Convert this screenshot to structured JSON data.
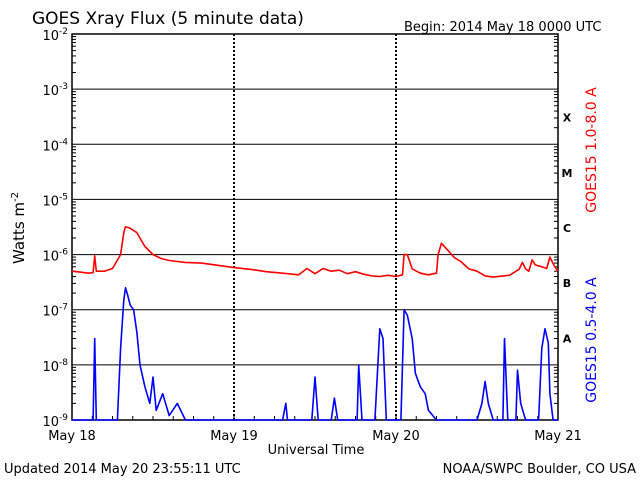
{
  "header": {
    "title": "GOES Xray Flux (5 minute data)",
    "begin": "Begin:  2014 May 18 0000 UTC"
  },
  "footer": {
    "updated": "Updated 2014 May 20 23:55:11 UTC",
    "credit": "NOAA/SWPC Boulder, CO USA"
  },
  "chart_data": {
    "type": "line",
    "title": "GOES Xray Flux (5 minute data)",
    "xlabel": "Universal Time",
    "ylabel": "Watts m",
    "ylabel_superscript": "-2",
    "yscale": "log",
    "ylim": [
      1e-09,
      0.01
    ],
    "xlim_days": [
      0,
      3
    ],
    "x_tick_labels": [
      "May 18",
      "May 19",
      "May 20",
      "May 21"
    ],
    "y_ticks": [
      {
        "base": "10",
        "exp": "-2"
      },
      {
        "base": "10",
        "exp": "-3"
      },
      {
        "base": "10",
        "exp": "-4"
      },
      {
        "base": "10",
        "exp": "-5"
      },
      {
        "base": "10",
        "exp": "-6"
      },
      {
        "base": "10",
        "exp": "-7"
      },
      {
        "base": "10",
        "exp": "-8"
      },
      {
        "base": "10",
        "exp": "-9"
      }
    ],
    "flare_classes": [
      {
        "label": "X",
        "level": 0.0001
      },
      {
        "label": "M",
        "level": 1e-05
      },
      {
        "label": "C",
        "level": 1e-06
      },
      {
        "label": "B",
        "level": 1e-07
      },
      {
        "label": "A",
        "level": 1e-08
      }
    ],
    "colors": {
      "long": "#ff0000",
      "short": "#0000ff",
      "grid": "#000000"
    },
    "series": [
      {
        "name": "GOES15 1.0-8.0 A",
        "color": "#ff0000",
        "points": [
          [
            0.0,
            5e-07
          ],
          [
            0.05,
            4.8e-07
          ],
          [
            0.1,
            4.6e-07
          ],
          [
            0.13,
            4.7e-07
          ],
          [
            0.14,
            9.5e-07
          ],
          [
            0.15,
            5e-07
          ],
          [
            0.2,
            5e-07
          ],
          [
            0.25,
            5.6e-07
          ],
          [
            0.3,
            1e-06
          ],
          [
            0.32,
            2.5e-06
          ],
          [
            0.33,
            3.2e-06
          ],
          [
            0.36,
            3e-06
          ],
          [
            0.4,
            2.5e-06
          ],
          [
            0.45,
            1.4e-06
          ],
          [
            0.5,
            1e-06
          ],
          [
            0.55,
            8.5e-07
          ],
          [
            0.6,
            7.8e-07
          ],
          [
            0.7,
            7.2e-07
          ],
          [
            0.8,
            7e-07
          ],
          [
            0.9,
            6.4e-07
          ],
          [
            1.0,
            5.8e-07
          ],
          [
            1.1,
            5.4e-07
          ],
          [
            1.2,
            4.9e-07
          ],
          [
            1.3,
            4.6e-07
          ],
          [
            1.4,
            4.3e-07
          ],
          [
            1.45,
            5.6e-07
          ],
          [
            1.5,
            4.5e-07
          ],
          [
            1.55,
            5.6e-07
          ],
          [
            1.6,
            5e-07
          ],
          [
            1.65,
            5.2e-07
          ],
          [
            1.7,
            4.5e-07
          ],
          [
            1.75,
            4.9e-07
          ],
          [
            1.8,
            4.4e-07
          ],
          [
            1.85,
            4.1e-07
          ],
          [
            1.9,
            4e-07
          ],
          [
            1.95,
            4.2e-07
          ],
          [
            2.0,
            4e-07
          ],
          [
            2.04,
            4.3e-07
          ],
          [
            2.05,
            1e-06
          ],
          [
            2.07,
            1e-06
          ],
          [
            2.1,
            5.5e-07
          ],
          [
            2.15,
            4.6e-07
          ],
          [
            2.2,
            4.3e-07
          ],
          [
            2.25,
            4.6e-07
          ],
          [
            2.26,
            1e-06
          ],
          [
            2.28,
            1.6e-06
          ],
          [
            2.32,
            1.2e-06
          ],
          [
            2.36,
            8.8e-07
          ],
          [
            2.4,
            7.5e-07
          ],
          [
            2.45,
            5.5e-07
          ],
          [
            2.5,
            5e-07
          ],
          [
            2.55,
            4.1e-07
          ],
          [
            2.6,
            3.9e-07
          ],
          [
            2.7,
            4.2e-07
          ],
          [
            2.76,
            5.4e-07
          ],
          [
            2.78,
            7.2e-07
          ],
          [
            2.8,
            5.5e-07
          ],
          [
            2.82,
            5e-07
          ],
          [
            2.84,
            8e-07
          ],
          [
            2.86,
            6.5e-07
          ],
          [
            2.9,
            6e-07
          ],
          [
            2.93,
            5.6e-07
          ],
          [
            2.95,
            9e-07
          ],
          [
            2.98,
            6e-07
          ],
          [
            3.0,
            5e-07
          ]
        ]
      },
      {
        "name": "GOES15 0.5-4.0 A",
        "color": "#0000ff",
        "points": [
          [
            0.0,
            1e-09
          ],
          [
            0.1,
            1e-09
          ],
          [
            0.13,
            1e-09
          ],
          [
            0.14,
            3e-08
          ],
          [
            0.15,
            1e-09
          ],
          [
            0.18,
            1e-09
          ],
          [
            0.28,
            1e-09
          ],
          [
            0.3,
            2e-08
          ],
          [
            0.32,
            1.5e-07
          ],
          [
            0.33,
            2.5e-07
          ],
          [
            0.34,
            2e-07
          ],
          [
            0.36,
            1.2e-07
          ],
          [
            0.38,
            1e-07
          ],
          [
            0.4,
            4e-08
          ],
          [
            0.42,
            1e-08
          ],
          [
            0.45,
            4e-09
          ],
          [
            0.48,
            2e-09
          ],
          [
            0.5,
            6e-09
          ],
          [
            0.52,
            1.5e-09
          ],
          [
            0.56,
            3e-09
          ],
          [
            0.6,
            1.2e-09
          ],
          [
            0.65,
            2e-09
          ],
          [
            0.7,
            1e-09
          ],
          [
            0.8,
            1e-09
          ],
          [
            1.3,
            1e-09
          ],
          [
            1.32,
            2e-09
          ],
          [
            1.33,
            1e-09
          ],
          [
            1.48,
            1e-09
          ],
          [
            1.5,
            6e-09
          ],
          [
            1.52,
            1e-09
          ],
          [
            1.6,
            1e-09
          ],
          [
            1.62,
            2.5e-09
          ],
          [
            1.64,
            1e-09
          ],
          [
            1.76,
            1e-09
          ],
          [
            1.77,
            1e-08
          ],
          [
            1.79,
            1e-09
          ],
          [
            1.87,
            1e-09
          ],
          [
            1.9,
            4.5e-08
          ],
          [
            1.92,
            3e-08
          ],
          [
            1.94,
            1e-09
          ],
          [
            1.98,
            1e-09
          ],
          [
            2.03,
            1e-09
          ],
          [
            2.05,
            1e-07
          ],
          [
            2.07,
            8e-08
          ],
          [
            2.1,
            3e-08
          ],
          [
            2.12,
            7e-09
          ],
          [
            2.15,
            4e-09
          ],
          [
            2.18,
            3e-09
          ],
          [
            2.2,
            1.5e-09
          ],
          [
            2.25,
            1e-09
          ],
          [
            2.5,
            1e-09
          ],
          [
            2.53,
            2e-09
          ],
          [
            2.55,
            5e-09
          ],
          [
            2.57,
            2e-09
          ],
          [
            2.6,
            1e-09
          ],
          [
            2.66,
            1e-09
          ],
          [
            2.67,
            3e-08
          ],
          [
            2.69,
            1e-09
          ],
          [
            2.74,
            1e-09
          ],
          [
            2.75,
            8e-09
          ],
          [
            2.77,
            2e-09
          ],
          [
            2.8,
            1e-09
          ],
          [
            2.88,
            1e-09
          ],
          [
            2.9,
            2e-08
          ],
          [
            2.92,
            4.5e-08
          ],
          [
            2.94,
            2.5e-08
          ],
          [
            2.95,
            3e-09
          ],
          [
            2.97,
            1e-09
          ],
          [
            3.0,
            1e-09
          ]
        ]
      }
    ]
  }
}
